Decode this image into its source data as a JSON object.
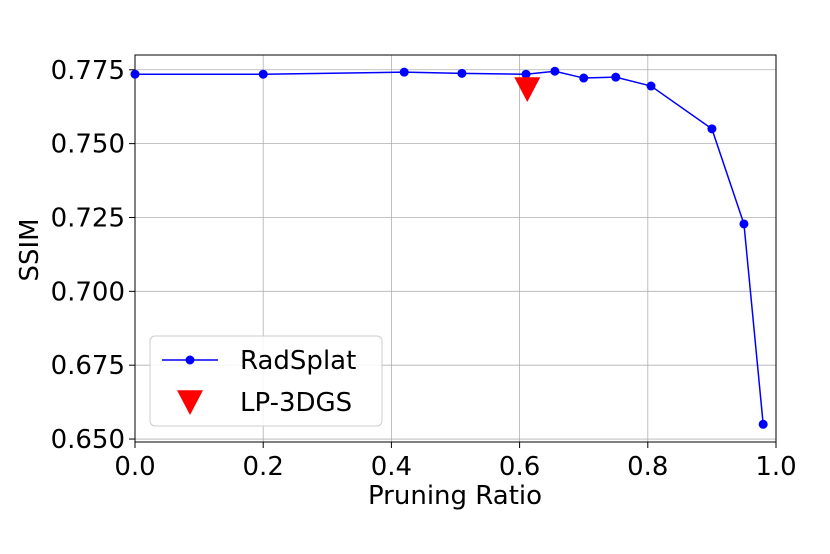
{
  "chart_data": {
    "type": "line",
    "xlabel": "Pruning Ratio",
    "ylabel": "SSIM",
    "xlim": [
      0.0,
      1.0
    ],
    "ylim": [
      0.649,
      0.78
    ],
    "xticks": [
      "0.0",
      "0.2",
      "0.4",
      "0.6",
      "0.8",
      "1.0"
    ],
    "yticks": [
      "0.650",
      "0.675",
      "0.700",
      "0.725",
      "0.750",
      "0.775"
    ],
    "grid": true,
    "legend_position": "lower-left",
    "series": [
      {
        "name": "RadSplat",
        "color": "#0000ff",
        "marker": "circle",
        "points": [
          {
            "x": 0.0,
            "y": 0.7735
          },
          {
            "x": 0.2,
            "y": 0.7735
          },
          {
            "x": 0.42,
            "y": 0.7742
          },
          {
            "x": 0.51,
            "y": 0.7738
          },
          {
            "x": 0.61,
            "y": 0.7735
          },
          {
            "x": 0.655,
            "y": 0.7745
          },
          {
            "x": 0.7,
            "y": 0.7722
          },
          {
            "x": 0.75,
            "y": 0.7725
          },
          {
            "x": 0.805,
            "y": 0.7695
          },
          {
            "x": 0.9,
            "y": 0.755
          },
          {
            "x": 0.95,
            "y": 0.7228
          },
          {
            "x": 0.98,
            "y": 0.655
          }
        ]
      },
      {
        "name": "LP-3DGS",
        "color": "#ff0000",
        "marker": "triangle-down",
        "points": [
          {
            "x": 0.612,
            "y": 0.7685
          }
        ]
      }
    ]
  }
}
